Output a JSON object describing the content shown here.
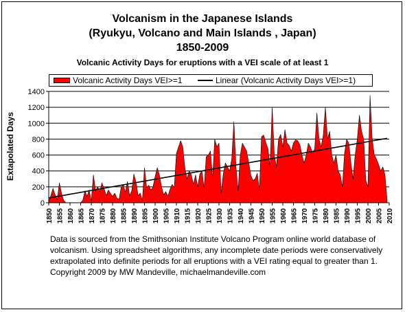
{
  "chart_data": {
    "type": "area",
    "title": "Volcanism in the Japanese Islands",
    "subtitle_lines": [
      "(Ryukyu, Volcano and Main Islands , Japan)",
      "1850-2009"
    ],
    "subtitle2": "Volcanic Activity Days for eruptions with a VEI scale of at least 1",
    "xlabel": "",
    "ylabel": "Extapolated Days",
    "xlim": [
      1850,
      2010
    ],
    "ylim": [
      0,
      1400
    ],
    "y_ticks": [
      0,
      200,
      400,
      600,
      800,
      1000,
      1200,
      1400
    ],
    "x_tick_labels": [
      "1850",
      "1855",
      "1860",
      "1865",
      "1870",
      "1875",
      "1880",
      "1885",
      "1890",
      "1895",
      "1900",
      "1905",
      "1910",
      "1915",
      "1920",
      "1925",
      "1930",
      "1935",
      "1940",
      "1945",
      "1950",
      "1955",
      "1960",
      "1965",
      "1970",
      "1975",
      "1980",
      "1985",
      "1990",
      "1995",
      "2000",
      "2005",
      "2010"
    ],
    "grid": "horizontal",
    "legend_position": "top",
    "series": [
      {
        "name": "Volcanic Activity Days VEI>=1",
        "kind": "area",
        "color": "#ff0000",
        "x": [
          1850,
          1851,
          1852,
          1853,
          1854,
          1855,
          1856,
          1857,
          1858,
          1859,
          1860,
          1861,
          1862,
          1863,
          1864,
          1865,
          1866,
          1867,
          1868,
          1869,
          1870,
          1871,
          1872,
          1873,
          1874,
          1875,
          1876,
          1877,
          1878,
          1879,
          1880,
          1881,
          1882,
          1883,
          1884,
          1885,
          1886,
          1887,
          1888,
          1889,
          1890,
          1891,
          1892,
          1893,
          1894,
          1895,
          1896,
          1897,
          1898,
          1899,
          1900,
          1901,
          1902,
          1903,
          1904,
          1905,
          1906,
          1907,
          1908,
          1909,
          1910,
          1911,
          1912,
          1913,
          1914,
          1915,
          1916,
          1917,
          1918,
          1919,
          1920,
          1921,
          1922,
          1923,
          1924,
          1925,
          1926,
          1927,
          1928,
          1929,
          1930,
          1931,
          1932,
          1933,
          1934,
          1935,
          1936,
          1937,
          1938,
          1939,
          1940,
          1941,
          1942,
          1943,
          1944,
          1945,
          1946,
          1947,
          1948,
          1949,
          1950,
          1951,
          1952,
          1953,
          1954,
          1955,
          1956,
          1957,
          1958,
          1959,
          1960,
          1961,
          1962,
          1963,
          1964,
          1965,
          1966,
          1967,
          1968,
          1969,
          1970,
          1971,
          1972,
          1973,
          1974,
          1975,
          1976,
          1977,
          1978,
          1979,
          1980,
          1981,
          1982,
          1983,
          1984,
          1985,
          1986,
          1987,
          1988,
          1989,
          1990,
          1991,
          1992,
          1993,
          1994,
          1995,
          1996,
          1997,
          1998,
          1999,
          2000,
          2001,
          2002,
          2003,
          2004,
          2005,
          2006,
          2007,
          2008,
          2009
        ],
        "values": [
          20,
          90,
          180,
          100,
          40,
          250,
          120,
          30,
          0,
          0,
          0,
          0,
          0,
          0,
          0,
          0,
          30,
          150,
          80,
          160,
          20,
          350,
          150,
          200,
          140,
          250,
          180,
          90,
          160,
          120,
          80,
          120,
          60,
          40,
          190,
          230,
          130,
          270,
          90,
          150,
          360,
          260,
          90,
          120,
          30,
          440,
          190,
          220,
          160,
          200,
          330,
          440,
          350,
          200,
          100,
          140,
          80,
          170,
          230,
          190,
          620,
          700,
          780,
          700,
          430,
          300,
          400,
          350,
          230,
          350,
          200,
          360,
          400,
          180,
          580,
          600,
          650,
          300,
          800,
          700,
          750,
          120,
          360,
          500,
          450,
          400,
          550,
          1020,
          450,
          150,
          600,
          750,
          700,
          650,
          500,
          340,
          280,
          300,
          370,
          160,
          830,
          850,
          760,
          680,
          450,
          1200,
          600,
          450,
          800,
          860,
          700,
          920,
          750,
          720,
          650,
          750,
          790,
          780,
          730,
          600,
          500,
          600,
          750,
          700,
          620,
          680,
          1130,
          800,
          700,
          850,
          1200,
          800,
          900,
          600,
          500,
          600,
          400,
          350,
          200,
          620,
          800,
          750,
          500,
          300,
          600,
          800,
          1100,
          900,
          800,
          280,
          200,
          1350,
          800,
          600,
          550,
          480,
          400,
          450,
          350,
          30
        ]
      },
      {
        "name": "Linear (Volcanic Activity Days VEI>=1)",
        "kind": "line",
        "color": "#000000",
        "x": [
          1850,
          2009
        ],
        "values": [
          60,
          810
        ]
      }
    ]
  },
  "footnote": "Data is sourced from the Smithsonian Institute Volcano Program online world database of volcanism.  Using spreadsheet algorithms, any incomplete date periods were conservatively extrapolated into definite periods for all eruptions with a VEI rating equal to greater than 1. Copyright 2009 by MW Mandeville, michaelmandeville.com"
}
